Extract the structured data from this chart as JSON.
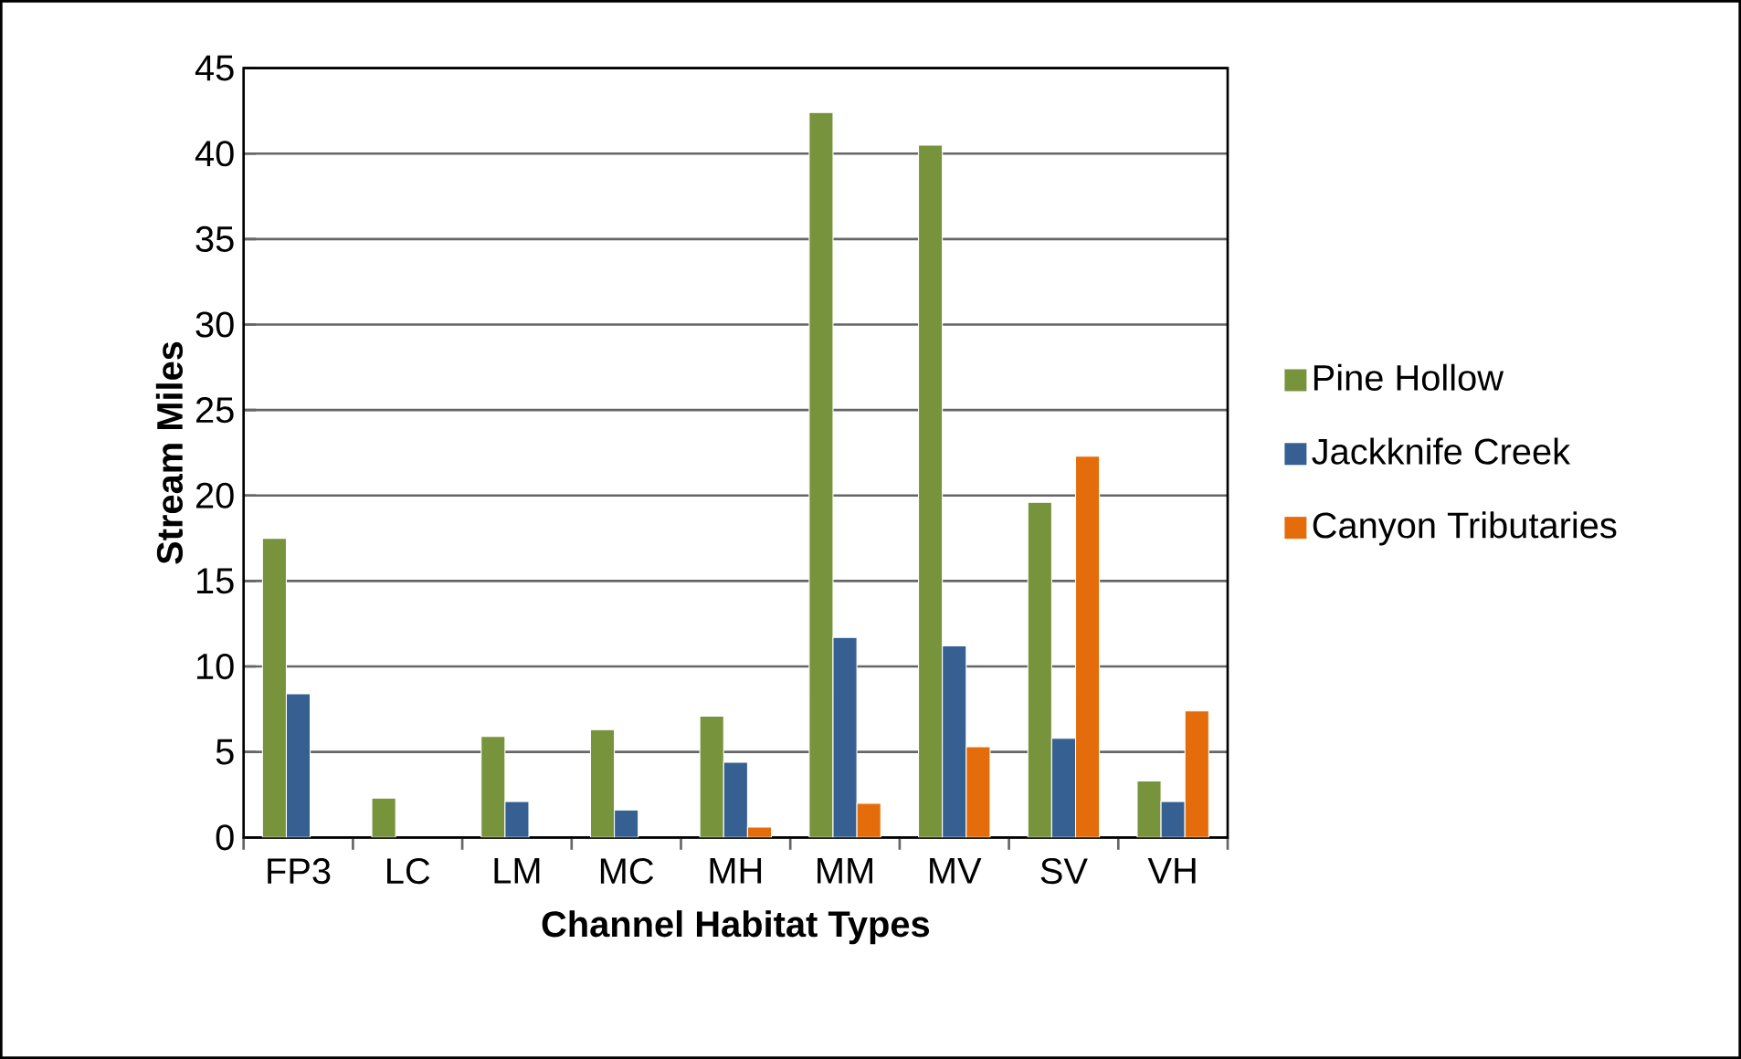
{
  "chart_data": {
    "type": "bar",
    "xlabel": "Channel Habitat Types",
    "ylabel": "Stream Miles",
    "categories": [
      "FP3",
      "LC",
      "LM",
      "MC",
      "MH",
      "MM",
      "MV",
      "SV",
      "VH"
    ],
    "series": [
      {
        "name": "Pine Hollow",
        "color": "#77933c",
        "values": [
          17.5,
          2.3,
          5.9,
          6.3,
          7.1,
          42.4,
          40.5,
          19.6,
          3.3
        ]
      },
      {
        "name": "Jackknife Creek",
        "color": "#376092",
        "values": [
          8.4,
          null,
          2.1,
          1.6,
          4.4,
          11.7,
          11.2,
          5.8,
          2.1
        ]
      },
      {
        "name": "Canyon Tributaries",
        "color": "#e46c0a",
        "values": [
          null,
          null,
          null,
          null,
          0.6,
          2.0,
          5.3,
          22.3,
          7.4
        ]
      }
    ],
    "ylim": [
      0,
      45
    ],
    "yticks": [
      0,
      5,
      10,
      15,
      20,
      25,
      30,
      35,
      40,
      45
    ],
    "grid": "y",
    "legend": "right"
  }
}
